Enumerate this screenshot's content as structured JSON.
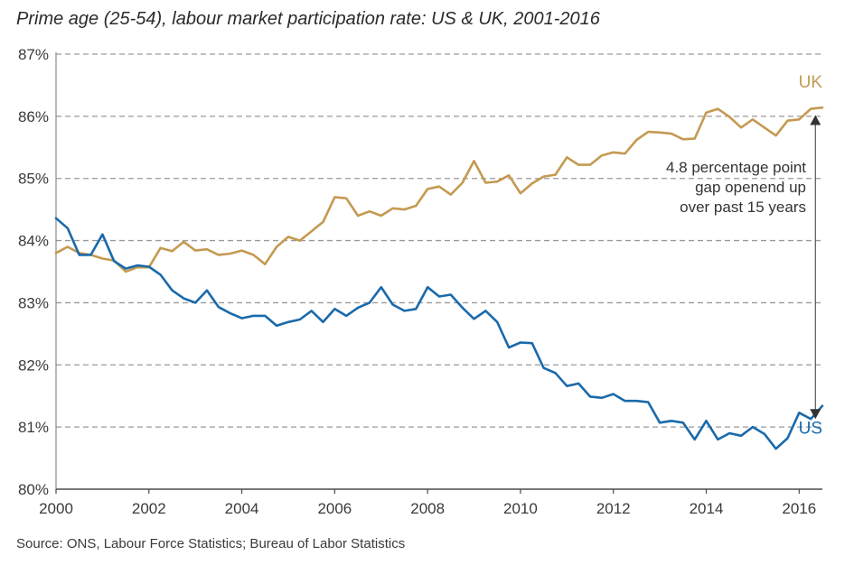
{
  "chart_data": {
    "type": "line",
    "title": "Prime age (25-54), labour market participation rate: US & UK, 2001-2016",
    "source": "Source: ONS, Labour Force Statistics; Bureau of Labor Statistics",
    "xlim": [
      2000,
      2016.5
    ],
    "ylim": [
      80,
      87
    ],
    "x_ticks": [
      2000,
      2002,
      2004,
      2006,
      2008,
      2010,
      2012,
      2014,
      2016
    ],
    "y_ticks": [
      80,
      81,
      82,
      83,
      84,
      85,
      86,
      87
    ],
    "y_tick_labels": [
      "80%",
      "81%",
      "82%",
      "83%",
      "84%",
      "85%",
      "86%",
      "87%"
    ],
    "grid": "horizontal dashed",
    "series": [
      {
        "name": "UK",
        "color": "#c49a52",
        "x": [
          2000.0,
          2000.25,
          2000.5,
          2000.75,
          2001.0,
          2001.25,
          2001.5,
          2001.75,
          2002.0,
          2002.25,
          2002.5,
          2002.75,
          2003.0,
          2003.25,
          2003.5,
          2003.75,
          2004.0,
          2004.25,
          2004.5,
          2004.75,
          2005.0,
          2005.25,
          2005.5,
          2005.75,
          2006.0,
          2006.25,
          2006.5,
          2006.75,
          2007.0,
          2007.25,
          2007.5,
          2007.75,
          2008.0,
          2008.25,
          2008.5,
          2008.75,
          2009.0,
          2009.25,
          2009.5,
          2009.75,
          2010.0,
          2010.25,
          2010.5,
          2010.75,
          2011.0,
          2011.25,
          2011.5,
          2011.75,
          2012.0,
          2012.25,
          2012.5,
          2012.75,
          2013.0,
          2013.25,
          2013.5,
          2013.75,
          2014.0,
          2014.25,
          2014.5,
          2014.75,
          2015.0,
          2015.25,
          2015.5,
          2015.75,
          2016.0,
          2016.25,
          2016.5
        ],
        "values": [
          83.8,
          83.9,
          83.8,
          83.77,
          83.71,
          83.68,
          83.5,
          83.57,
          83.57,
          83.88,
          83.83,
          83.98,
          83.84,
          83.86,
          83.77,
          83.79,
          83.84,
          83.77,
          83.62,
          83.9,
          84.06,
          84.0,
          84.15,
          84.3,
          84.7,
          84.68,
          84.4,
          84.47,
          84.4,
          84.52,
          84.5,
          84.56,
          84.83,
          84.87,
          84.74,
          84.93,
          85.28,
          84.93,
          84.95,
          85.05,
          84.76,
          84.92,
          85.03,
          85.06,
          85.34,
          85.22,
          85.22,
          85.37,
          85.42,
          85.4,
          85.62,
          85.75,
          85.74,
          85.72,
          85.63,
          85.64,
          86.06,
          86.12,
          85.99,
          85.82,
          85.95,
          85.82,
          85.69,
          85.93,
          85.95,
          86.12,
          86.14
        ]
      },
      {
        "name": "US",
        "color": "#1a6aab",
        "x": [
          2000.0,
          2000.25,
          2000.5,
          2000.75,
          2001.0,
          2001.25,
          2001.5,
          2001.75,
          2002.0,
          2002.25,
          2002.5,
          2002.75,
          2003.0,
          2003.25,
          2003.5,
          2003.75,
          2004.0,
          2004.25,
          2004.5,
          2004.75,
          2005.0,
          2005.25,
          2005.5,
          2005.75,
          2006.0,
          2006.25,
          2006.5,
          2006.75,
          2007.0,
          2007.25,
          2007.5,
          2007.75,
          2008.0,
          2008.25,
          2008.5,
          2008.75,
          2009.0,
          2009.25,
          2009.5,
          2009.75,
          2010.0,
          2010.25,
          2010.5,
          2010.75,
          2011.0,
          2011.25,
          2011.5,
          2011.75,
          2012.0,
          2012.25,
          2012.5,
          2012.75,
          2013.0,
          2013.25,
          2013.5,
          2013.75,
          2014.0,
          2014.25,
          2014.5,
          2014.75,
          2015.0,
          2015.25,
          2015.5,
          2015.75,
          2016.0,
          2016.25,
          2016.5
        ],
        "values": [
          84.36,
          84.2,
          83.77,
          83.77,
          84.1,
          83.67,
          83.55,
          83.6,
          83.58,
          83.45,
          83.2,
          83.07,
          83.0,
          83.2,
          82.93,
          82.83,
          82.75,
          82.79,
          82.79,
          82.63,
          82.69,
          82.73,
          82.87,
          82.69,
          82.9,
          82.79,
          82.92,
          83.0,
          83.25,
          82.97,
          82.87,
          82.9,
          83.25,
          83.1,
          83.13,
          82.92,
          82.74,
          82.87,
          82.69,
          82.28,
          82.36,
          82.35,
          81.95,
          81.87,
          81.66,
          81.7,
          81.49,
          81.47,
          81.53,
          81.42,
          81.42,
          81.4,
          81.07,
          81.1,
          81.07,
          80.8,
          81.1,
          80.8,
          80.9,
          80.86,
          81.0,
          80.89,
          80.65,
          80.82,
          81.23,
          81.13,
          81.34
        ]
      }
    ],
    "annotation": {
      "lines": [
        "4.8 percentage point",
        "gap openend up",
        "over past 15 years"
      ],
      "arrow_x": 2016.35,
      "arrow_from": 81.13,
      "arrow_to": 86.02
    }
  }
}
